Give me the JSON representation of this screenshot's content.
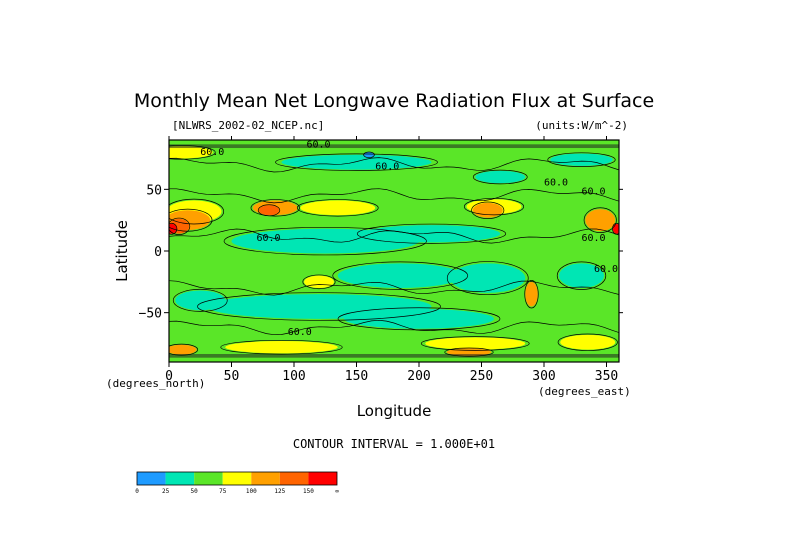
{
  "chart_data": {
    "type": "heatmap",
    "title": "Monthly Mean Net Longwave Radiation Flux at Surface",
    "subtitle_left": "[NLWRS_2002-02_NCEP.nc]",
    "subtitle_right": "(units:W/m^-2)",
    "xlabel": "Longitude",
    "ylabel": "Latitude",
    "x_unit_label": "(degrees_east)",
    "y_unit_label": "(degrees_north)",
    "x_ticks": [
      "0",
      "50",
      "100",
      "150",
      "200",
      "250",
      "300",
      "350"
    ],
    "y_ticks": [
      "50",
      "0",
      "−50"
    ],
    "xlim": [
      0,
      360
    ],
    "ylim": [
      -90,
      90
    ],
    "contour_interval_text": "CONTOUR INTERVAL = 1.000E+01",
    "contour_labels": [
      "60.0",
      "60.0",
      "60.0",
      "60.0",
      "60.0",
      "60.0",
      "60.0",
      "60.0",
      "60.0"
    ],
    "colorbar": {
      "levels": [
        "0",
        "25",
        "50",
        "75",
        "100",
        "125",
        "150",
        "∞"
      ],
      "colors": [
        "#1e9bff",
        "#00e6b4",
        "#5ae628",
        "#ffff00",
        "#ffa000",
        "#ff6400",
        "#ff0000"
      ]
    }
  }
}
